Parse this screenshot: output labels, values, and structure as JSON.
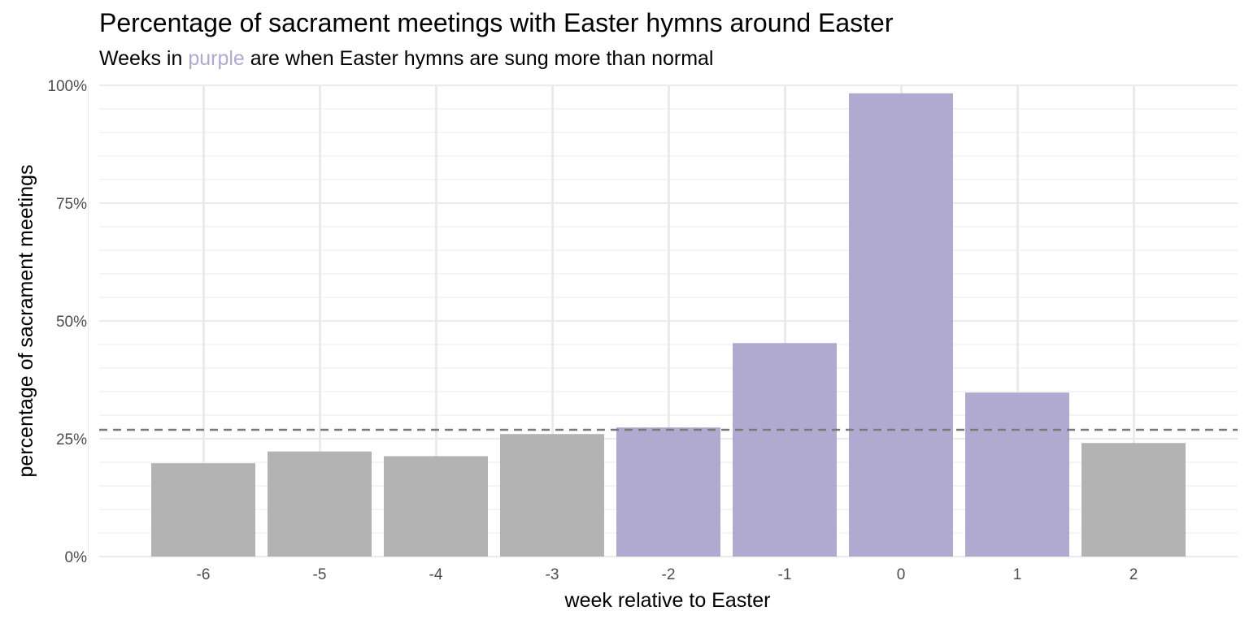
{
  "chart_data": {
    "type": "bar",
    "title": "Percentage of sacrament meetings with Easter hymns around Easter",
    "subtitle": {
      "before": "Weeks in ",
      "highlight": "purple",
      "after": " are when Easter hymns are sung more than normal"
    },
    "xlabel": "week relative to Easter",
    "ylabel": "percentage of sacrament meetings",
    "categories": [
      "-6",
      "-5",
      "-4",
      "-3",
      "-2",
      "-1",
      "0",
      "1",
      "2"
    ],
    "values": [
      19.8,
      22.3,
      21.3,
      26.0,
      27.4,
      45.3,
      98.3,
      34.8,
      24.1
    ],
    "highlighted": [
      false,
      false,
      false,
      false,
      true,
      true,
      true,
      true,
      false
    ],
    "reference_line": 26.9,
    "ylim": [
      0,
      100
    ],
    "yticks": [
      "0%",
      "25%",
      "50%",
      "75%",
      "100%"
    ],
    "ytick_values": [
      0,
      25,
      50,
      75,
      100
    ],
    "grid": true,
    "colors": {
      "normal": "#b3b3b3",
      "highlight": "#b0aad1",
      "reference_line": "#7a7a7a",
      "grid": "#ebebeb"
    }
  }
}
